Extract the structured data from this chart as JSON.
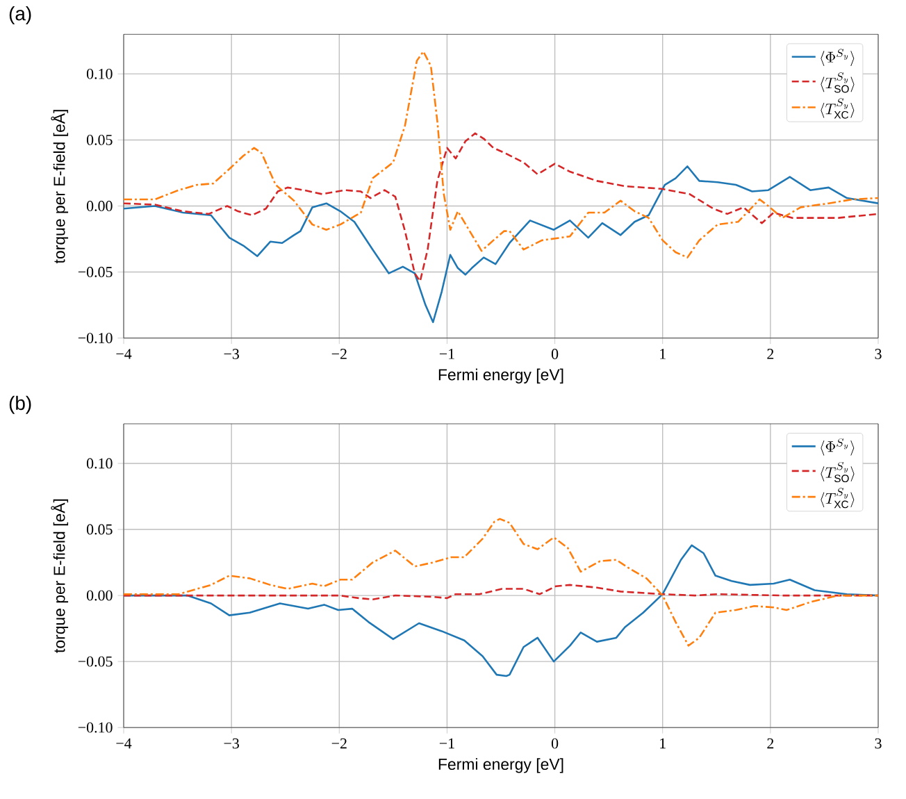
{
  "chart_data": [
    {
      "type": "line",
      "title": "(a)",
      "xlabel": "Fermi energy [eV]",
      "ylabel": "torque per E-field [eÅ]",
      "xlim": [
        -4,
        3
      ],
      "ylim": [
        -0.1,
        0.13
      ],
      "xticks": [
        {
          "value": -4,
          "label": "−4"
        },
        {
          "value": -3,
          "label": "−3"
        },
        {
          "value": -2,
          "label": "−2"
        },
        {
          "value": -1,
          "label": "−1"
        },
        0,
        1,
        2,
        3
      ],
      "yticks": [
        {
          "value": -0.1,
          "label": "−0.10"
        },
        {
          "value": -0.05,
          "label": "−0.05"
        },
        {
          "value": 0,
          "label": "0.00"
        },
        {
          "value": 0.05,
          "label": "0.05"
        },
        {
          "value": 0.1,
          "label": "0.10"
        }
      ],
      "grid": true,
      "legend": "top right",
      "series": [
        {
          "name": "\\langle \\Phi^{S_y} \\rangle",
          "color": "#1f77b4",
          "line_style": "solid",
          "x": [
            -4,
            -3.71,
            -3.45,
            -3.19,
            -3.02,
            -2.89,
            -2.76,
            -2.64,
            -2.53,
            -2.42,
            -2.36,
            -2.25,
            -2.12,
            -1.99,
            -1.86,
            -1.69,
            -1.54,
            -1.41,
            -1.3,
            -1.2,
            -1.13,
            -1.05,
            -0.97,
            -0.9,
            -0.83,
            -0.77,
            -0.66,
            -0.55,
            -0.42,
            -0.23,
            -0.01,
            0.14,
            0.31,
            0.44,
            0.61,
            0.74,
            0.87,
            1.02,
            1.12,
            1.23,
            1.34,
            1.51,
            1.68,
            1.83,
            1.98,
            2.18,
            2.37,
            2.54,
            2.71,
            3.0
          ],
          "values": [
            -0.002,
            0.0,
            -0.005,
            -0.007,
            -0.024,
            -0.03,
            -0.038,
            -0.027,
            -0.028,
            -0.022,
            -0.019,
            -0.001,
            0.002,
            -0.004,
            -0.012,
            -0.033,
            -0.051,
            -0.046,
            -0.051,
            -0.075,
            -0.088,
            -0.065,
            -0.037,
            -0.047,
            -0.052,
            -0.047,
            -0.039,
            -0.044,
            -0.028,
            -0.011,
            -0.018,
            -0.011,
            -0.024,
            -0.013,
            -0.022,
            -0.012,
            -0.007,
            0.016,
            0.021,
            0.03,
            0.019,
            0.018,
            0.016,
            0.011,
            0.012,
            0.022,
            0.012,
            0.014,
            0.006,
            0.002
          ]
        },
        {
          "name": "\\langle T_{\\mathrm{SO}}^{S_y} \\rangle",
          "color": "#d62728",
          "line_style": "dashed",
          "x": [
            -4,
            -3.71,
            -3.45,
            -3.21,
            -3.04,
            -2.94,
            -2.81,
            -2.68,
            -2.57,
            -2.48,
            -2.33,
            -2.16,
            -1.95,
            -1.8,
            -1.71,
            -1.58,
            -1.48,
            -1.39,
            -1.3,
            -1.25,
            -1.18,
            -1.09,
            -1.0,
            -0.92,
            -0.83,
            -0.74,
            -0.66,
            -0.57,
            -0.46,
            -0.29,
            -0.16,
            0.0,
            0.14,
            0.39,
            0.65,
            0.99,
            1.25,
            1.47,
            1.6,
            1.75,
            1.92,
            2.03,
            2.2,
            2.63,
            3.0
          ],
          "values": [
            0.002,
            0.001,
            -0.004,
            -0.006,
            0.0,
            -0.004,
            -0.007,
            -0.002,
            0.011,
            0.014,
            0.012,
            0.009,
            0.012,
            0.011,
            0.006,
            0.012,
            0.007,
            -0.019,
            -0.051,
            -0.057,
            -0.033,
            0.019,
            0.044,
            0.036,
            0.049,
            0.055,
            0.051,
            0.044,
            0.04,
            0.033,
            0.024,
            0.032,
            0.026,
            0.019,
            0.015,
            0.013,
            0.009,
            -0.002,
            -0.006,
            -0.001,
            -0.013,
            -0.005,
            -0.009,
            -0.009,
            -0.006
          ]
        },
        {
          "name": "\\langle T_{\\mathrm{XC}}^{S_y} \\rangle",
          "color": "#ff7f0e",
          "line_style": "dashdot",
          "x": [
            -4,
            -3.71,
            -3.49,
            -3.32,
            -3.17,
            -3.02,
            -2.89,
            -2.79,
            -2.72,
            -2.59,
            -2.42,
            -2.25,
            -2.12,
            -1.99,
            -1.8,
            -1.69,
            -1.5,
            -1.39,
            -1.28,
            -1.22,
            -1.15,
            -1.09,
            -1.03,
            -0.97,
            -0.9,
            -0.79,
            -0.68,
            -0.57,
            -0.47,
            -0.42,
            -0.29,
            -0.12,
            0.14,
            0.31,
            0.46,
            0.61,
            0.74,
            0.87,
            1.0,
            1.12,
            1.23,
            1.34,
            1.51,
            1.7,
            1.9,
            1.98,
            2.11,
            2.28,
            2.54,
            2.76,
            3.0
          ],
          "values": [
            0.005,
            0.005,
            0.012,
            0.016,
            0.017,
            0.028,
            0.038,
            0.044,
            0.04,
            0.016,
            0.004,
            -0.014,
            -0.018,
            -0.014,
            -0.005,
            0.021,
            0.033,
            0.061,
            0.11,
            0.117,
            0.106,
            0.064,
            0.009,
            -0.018,
            -0.004,
            -0.019,
            -0.034,
            -0.026,
            -0.019,
            -0.019,
            -0.033,
            -0.026,
            -0.023,
            -0.005,
            -0.005,
            0.004,
            -0.004,
            -0.009,
            -0.026,
            -0.035,
            -0.039,
            -0.026,
            -0.014,
            -0.012,
            0.005,
            0.0,
            -0.009,
            -0.001,
            0.002,
            0.005,
            0.006
          ]
        }
      ]
    },
    {
      "type": "line",
      "title": "(b)",
      "xlabel": "Fermi energy [eV]",
      "ylabel": "torque per E-field [eÅ]",
      "xlim": [
        -4,
        3
      ],
      "ylim": [
        -0.1,
        0.13
      ],
      "xticks": [
        {
          "value": -4,
          "label": "−4"
        },
        {
          "value": -3,
          "label": "−3"
        },
        {
          "value": -2,
          "label": "−2"
        },
        {
          "value": -1,
          "label": "−1"
        },
        0,
        1,
        2,
        3
      ],
      "yticks": [
        {
          "value": -0.1,
          "label": "−0.10"
        },
        {
          "value": -0.05,
          "label": "−0.05"
        },
        {
          "value": 0,
          "label": "0.00"
        },
        {
          "value": 0.05,
          "label": "0.05"
        },
        {
          "value": 0.1,
          "label": "0.10"
        }
      ],
      "grid": true,
      "legend": "top right",
      "series": [
        {
          "name": "\\langle \\Phi^{S_y} \\rangle",
          "color": "#1f77b4",
          "line_style": "solid",
          "x": [
            -4,
            -3.41,
            -3.19,
            -3.02,
            -2.83,
            -2.55,
            -2.29,
            -2.14,
            -2.01,
            -1.88,
            -1.73,
            -1.5,
            -1.26,
            -1.05,
            -0.84,
            -0.67,
            -0.54,
            -0.45,
            -0.42,
            -0.29,
            -0.16,
            -0.01,
            0.14,
            0.24,
            0.39,
            0.57,
            0.65,
            0.82,
            1.0,
            1.17,
            1.27,
            1.38,
            1.49,
            1.64,
            1.81,
            2.03,
            2.18,
            2.41,
            2.71,
            3.0
          ],
          "values": [
            0.0,
            0.0,
            -0.006,
            -0.015,
            -0.013,
            -0.006,
            -0.01,
            -0.007,
            -0.011,
            -0.01,
            -0.02,
            -0.033,
            -0.021,
            -0.027,
            -0.034,
            -0.046,
            -0.06,
            -0.061,
            -0.06,
            -0.039,
            -0.032,
            -0.05,
            -0.038,
            -0.028,
            -0.035,
            -0.032,
            -0.024,
            -0.013,
            0.001,
            0.027,
            0.038,
            0.032,
            0.015,
            0.011,
            0.008,
            0.009,
            0.012,
            0.004,
            0.001,
            0.0
          ]
        },
        {
          "name": "\\langle T_{\\mathrm{SO}}^{S_y} \\rangle",
          "color": "#d62728",
          "line_style": "dashed",
          "x": [
            -4,
            -2.0,
            -1.82,
            -1.69,
            -1.48,
            -1.13,
            -1.0,
            -0.92,
            -0.7,
            -0.49,
            -0.29,
            -0.14,
            0.01,
            0.14,
            0.39,
            0.61,
            1.0,
            1.3,
            1.51,
            2.11,
            3.0
          ],
          "values": [
            0.0,
            0.0,
            -0.002,
            -0.003,
            0.0,
            -0.001,
            -0.002,
            0.001,
            0.001,
            0.005,
            0.005,
            0.001,
            0.007,
            0.008,
            0.006,
            0.003,
            0.001,
            0.0,
            0.001,
            0.0,
            0.0
          ]
        },
        {
          "name": "\\langle T_{\\mathrm{XC}}^{S_y} \\rangle",
          "color": "#ff7f0e",
          "line_style": "dashdot",
          "x": [
            -4,
            -3.49,
            -3.19,
            -3.02,
            -2.83,
            -2.64,
            -2.48,
            -2.25,
            -2.14,
            -1.99,
            -1.88,
            -1.69,
            -1.48,
            -1.3,
            -1.13,
            -0.96,
            -0.84,
            -0.67,
            -0.56,
            -0.51,
            -0.42,
            -0.29,
            -0.16,
            -0.01,
            0.12,
            0.24,
            0.42,
            0.57,
            0.7,
            0.85,
            1.0,
            1.12,
            1.24,
            1.34,
            1.49,
            1.68,
            1.85,
            2.03,
            2.15,
            2.37,
            2.63,
            3.0
          ],
          "values": [
            0.001,
            0.001,
            0.008,
            0.015,
            0.013,
            0.008,
            0.005,
            0.009,
            0.007,
            0.012,
            0.012,
            0.025,
            0.034,
            0.022,
            0.025,
            0.029,
            0.029,
            0.043,
            0.056,
            0.058,
            0.055,
            0.039,
            0.035,
            0.044,
            0.036,
            0.018,
            0.026,
            0.027,
            0.02,
            0.013,
            0.0,
            -0.02,
            -0.038,
            -0.032,
            -0.013,
            -0.011,
            -0.008,
            -0.009,
            -0.011,
            -0.005,
            0.0,
            0.0
          ]
        }
      ]
    }
  ]
}
